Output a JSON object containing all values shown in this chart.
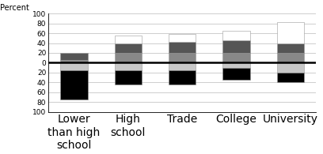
{
  "categories": [
    "Lower\nthan high\nschool",
    "High\nschool",
    "Trade",
    "College",
    "University"
  ],
  "ylabel": "Percent",
  "ylim": [
    -100,
    100
  ],
  "yticks": [
    -100,
    -80,
    -60,
    -40,
    -20,
    0,
    20,
    40,
    60,
    80,
    100
  ],
  "positive_segments": {
    "dark_gray": [
      5,
      20,
      20,
      20,
      20
    ],
    "medium_gray": [
      15,
      20,
      23,
      25,
      20
    ],
    "white_top": [
      0,
      15,
      15,
      20,
      43
    ]
  },
  "negative_segments": {
    "light_gray": [
      15,
      15,
      15,
      10,
      20
    ],
    "black": [
      60,
      30,
      30,
      25,
      20
    ]
  },
  "colors": {
    "dark_gray": "#888888",
    "medium_gray": "#555555",
    "white_top": "#ffffff",
    "light_gray": "#c8c8c8",
    "black": "#000000"
  },
  "bar_width": 0.5,
  "background_color": "#ffffff",
  "grid_color": "#bbbbbb",
  "zero_line_color": "#000000",
  "bar_edge_color": "#999999",
  "bar_edge_width": 0.4
}
